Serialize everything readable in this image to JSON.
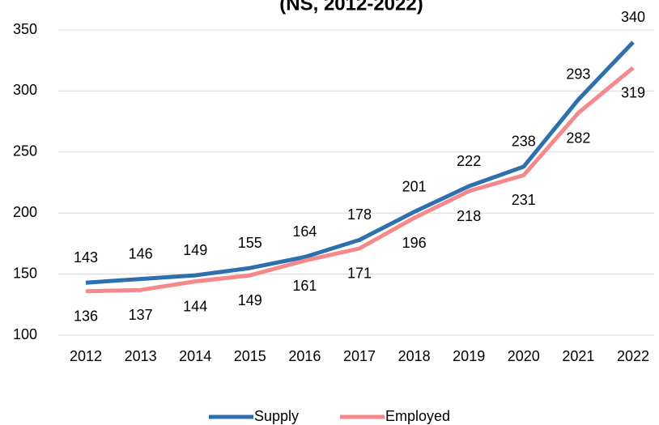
{
  "chart_data": {
    "type": "line",
    "title": "(NS, 2012-2022)",
    "categories": [
      "2012",
      "2013",
      "2014",
      "2015",
      "2016",
      "2017",
      "2018",
      "2019",
      "2020",
      "2021",
      "2022"
    ],
    "series": [
      {
        "name": "Supply",
        "color": "#2e6fad",
        "values": [
          143,
          146,
          149,
          155,
          164,
          178,
          201,
          222,
          238,
          293,
          340
        ]
      },
      {
        "name": "Employed",
        "color": "#f4888a",
        "values": [
          136,
          137,
          144,
          149,
          161,
          171,
          196,
          218,
          231,
          282,
          319
        ]
      }
    ],
    "ylim": [
      100,
      350
    ],
    "yticks": [
      100,
      150,
      200,
      250,
      300,
      350
    ],
    "grid": true,
    "legend": "bottom"
  }
}
